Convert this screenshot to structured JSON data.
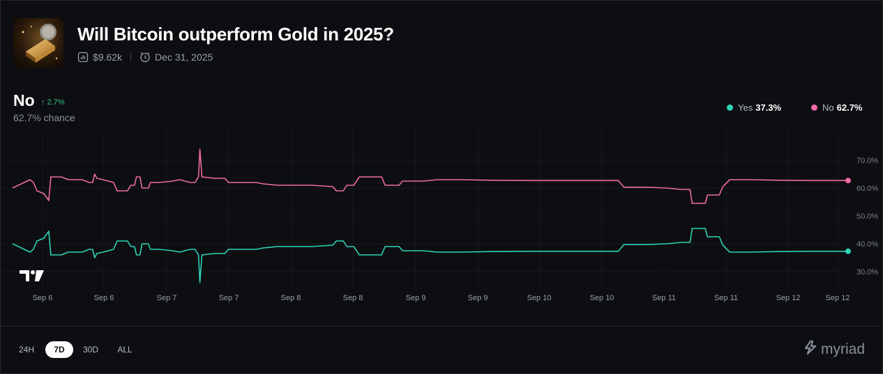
{
  "market": {
    "title": "Will Bitcoin outperform Gold in 2025?",
    "volume": "$9.62k",
    "end_date": "Dec 31, 2025"
  },
  "outcome": {
    "name": "No",
    "change": "2.7%",
    "chance_label": "62.7% chance"
  },
  "legend": [
    {
      "name": "Yes",
      "value": "37.3%",
      "color": "#2ed3b7"
    },
    {
      "name": "No",
      "value": "62.7%",
      "color": "#f06aa8"
    }
  ],
  "ranges": [
    "24H",
    "7D",
    "30D",
    "ALL"
  ],
  "active_range": "7D",
  "brand": "myriad",
  "chart_data": {
    "type": "line",
    "x": [
      "Sep 6",
      "Sep 6",
      "Sep 7",
      "Sep 7",
      "Sep 8",
      "Sep 8",
      "Sep 9",
      "Sep 9",
      "Sep 10",
      "Sep 10",
      "Sep 11",
      "Sep 11",
      "Sep 12",
      "Sep 12"
    ],
    "ylim": [
      25,
      75
    ],
    "yticks": [
      "70.0%",
      "60.0%",
      "50.0%",
      "40.0%",
      "30.0%"
    ],
    "ytick_values": [
      70,
      60,
      50,
      40,
      30
    ],
    "series": [
      {
        "name": "No",
        "color": "#f06aa8",
        "values": [
          [
            0,
            60
          ],
          [
            0.25,
            63
          ],
          [
            0.3,
            62
          ],
          [
            0.35,
            59
          ],
          [
            0.45,
            58
          ],
          [
            0.52,
            55.5
          ],
          [
            0.55,
            64
          ],
          [
            0.7,
            64
          ],
          [
            0.8,
            63
          ],
          [
            1.0,
            63
          ],
          [
            1.1,
            62
          ],
          [
            1.15,
            62
          ],
          [
            1.18,
            65
          ],
          [
            1.21,
            63.5
          ],
          [
            1.3,
            63
          ],
          [
            1.45,
            62
          ],
          [
            1.5,
            59
          ],
          [
            1.65,
            59
          ],
          [
            1.7,
            61
          ],
          [
            1.75,
            61
          ],
          [
            1.78,
            64
          ],
          [
            1.83,
            64
          ],
          [
            1.86,
            60
          ],
          [
            1.95,
            60
          ],
          [
            1.98,
            62
          ],
          [
            2.1,
            62
          ],
          [
            2.3,
            62.5
          ],
          [
            2.4,
            63
          ],
          [
            2.55,
            62
          ],
          [
            2.62,
            62
          ],
          [
            2.67,
            64
          ],
          [
            2.69,
            74
          ],
          [
            2.72,
            64
          ],
          [
            2.9,
            63.5
          ],
          [
            3.05,
            63.5
          ],
          [
            3.1,
            62
          ],
          [
            3.5,
            62
          ],
          [
            3.6,
            61.5
          ],
          [
            3.8,
            61
          ],
          [
            4.3,
            61
          ],
          [
            4.6,
            60.5
          ],
          [
            4.65,
            59
          ],
          [
            4.75,
            59
          ],
          [
            4.8,
            61
          ],
          [
            4.9,
            61
          ],
          [
            4.98,
            64
          ],
          [
            5.3,
            64
          ],
          [
            5.35,
            61
          ],
          [
            5.55,
            61
          ],
          [
            5.6,
            62.5
          ],
          [
            5.9,
            62.5
          ],
          [
            6.1,
            63
          ],
          [
            6.4,
            63
          ],
          [
            6.9,
            62.8
          ],
          [
            7.4,
            62.7
          ],
          [
            8.7,
            62.7
          ],
          [
            8.78,
            60.3
          ],
          [
            9.1,
            60.3
          ],
          [
            9.4,
            60
          ],
          [
            9.6,
            59.5
          ],
          [
            9.73,
            59.5
          ],
          [
            9.76,
            54.5
          ],
          [
            9.95,
            54.5
          ],
          [
            9.98,
            57.5
          ],
          [
            10.15,
            57.5
          ],
          [
            10.2,
            60.5
          ],
          [
            10.3,
            63
          ],
          [
            10.6,
            63
          ],
          [
            11.0,
            62.8
          ],
          [
            11.4,
            62.7
          ],
          [
            12.0,
            62.7
          ]
        ]
      },
      {
        "name": "Yes",
        "color": "#2ed3b7",
        "values": [
          [
            0,
            40
          ],
          [
            0.25,
            37
          ],
          [
            0.3,
            38
          ],
          [
            0.35,
            41
          ],
          [
            0.45,
            42
          ],
          [
            0.52,
            44.5
          ],
          [
            0.55,
            36
          ],
          [
            0.7,
            36
          ],
          [
            0.8,
            37
          ],
          [
            1.0,
            37
          ],
          [
            1.1,
            38
          ],
          [
            1.15,
            38
          ],
          [
            1.18,
            35
          ],
          [
            1.21,
            36.5
          ],
          [
            1.3,
            37
          ],
          [
            1.45,
            38
          ],
          [
            1.5,
            41
          ],
          [
            1.65,
            41
          ],
          [
            1.7,
            39
          ],
          [
            1.75,
            39
          ],
          [
            1.78,
            36
          ],
          [
            1.83,
            36
          ],
          [
            1.86,
            40
          ],
          [
            1.95,
            40
          ],
          [
            1.98,
            38
          ],
          [
            2.1,
            38
          ],
          [
            2.3,
            37.5
          ],
          [
            2.4,
            37
          ],
          [
            2.55,
            38
          ],
          [
            2.62,
            38
          ],
          [
            2.67,
            36
          ],
          [
            2.69,
            26
          ],
          [
            2.72,
            36
          ],
          [
            2.9,
            36.5
          ],
          [
            3.05,
            36.5
          ],
          [
            3.1,
            38
          ],
          [
            3.5,
            38
          ],
          [
            3.6,
            38.5
          ],
          [
            3.8,
            39
          ],
          [
            4.3,
            39
          ],
          [
            4.6,
            39.5
          ],
          [
            4.65,
            41
          ],
          [
            4.75,
            41
          ],
          [
            4.8,
            39
          ],
          [
            4.9,
            39
          ],
          [
            4.98,
            36
          ],
          [
            5.3,
            36
          ],
          [
            5.35,
            39
          ],
          [
            5.55,
            39
          ],
          [
            5.6,
            37.5
          ],
          [
            5.9,
            37.5
          ],
          [
            6.1,
            37
          ],
          [
            6.4,
            37
          ],
          [
            6.9,
            37.2
          ],
          [
            7.4,
            37.3
          ],
          [
            8.7,
            37.3
          ],
          [
            8.78,
            39.7
          ],
          [
            9.1,
            39.7
          ],
          [
            9.4,
            40
          ],
          [
            9.6,
            40.5
          ],
          [
            9.73,
            40.5
          ],
          [
            9.76,
            45.5
          ],
          [
            9.95,
            45.5
          ],
          [
            9.98,
            42.5
          ],
          [
            10.15,
            42.5
          ],
          [
            10.2,
            39.5
          ],
          [
            10.3,
            37
          ],
          [
            10.6,
            37
          ],
          [
            11.0,
            37.2
          ],
          [
            11.4,
            37.3
          ],
          [
            12.0,
            37.3
          ]
        ]
      }
    ]
  }
}
